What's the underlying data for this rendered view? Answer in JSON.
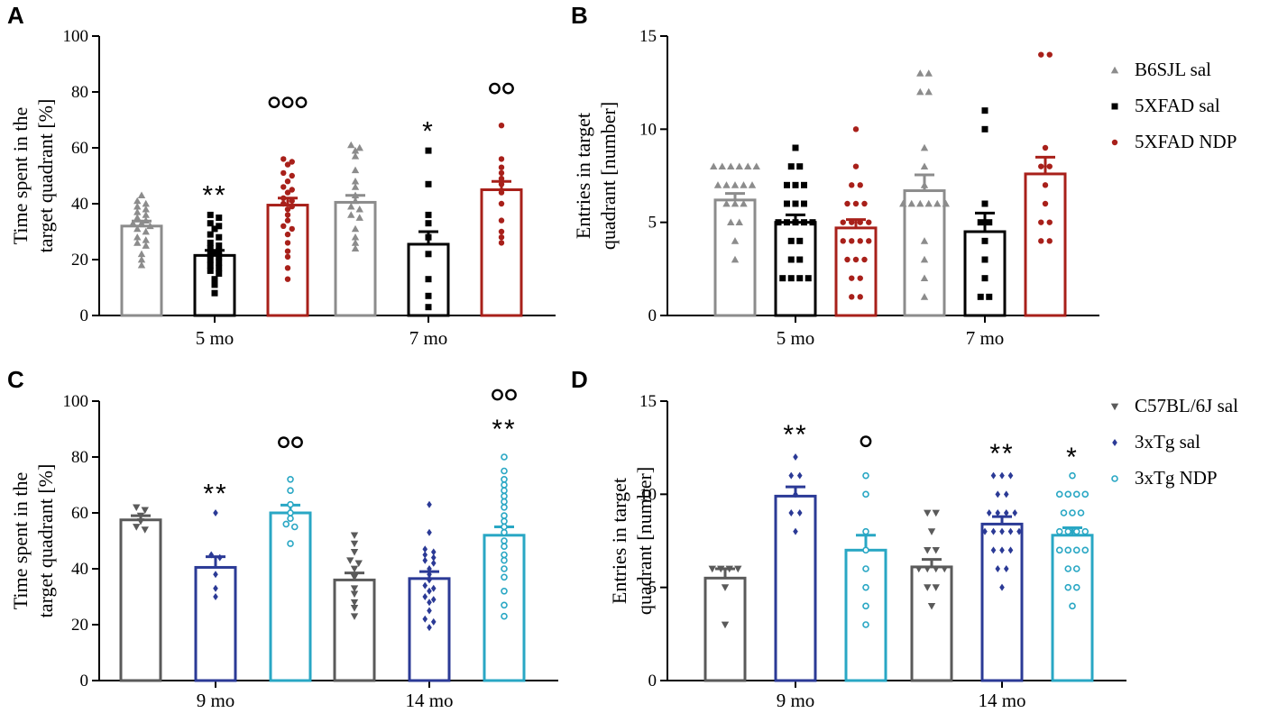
{
  "figure": {
    "width": 1417,
    "height": 791
  },
  "legends": [
    {
      "entries": [
        {
          "name": "B6SJL sal",
          "color": "#8c8c8c",
          "marker": "triangle-up"
        },
        {
          "name": "5XFAD sal",
          "color": "#000000",
          "marker": "square"
        },
        {
          "name": "5XFAD NDP",
          "color": "#a8201a",
          "marker": "circle"
        }
      ]
    },
    {
      "entries": [
        {
          "name": "C57BL/6J sal",
          "color": "#5a5a5a",
          "marker": "triangle-down"
        },
        {
          "name": "3xTg sal",
          "color": "#2b3a96",
          "marker": "diamond"
        },
        {
          "name": "3xTg NDP",
          "color": "#29a7c4",
          "marker": "circle-open"
        }
      ]
    }
  ],
  "chart_data": [
    {
      "panel": "A",
      "type": "bar",
      "ylabel": [
        "Time spent in the",
        "target quadrant [%]"
      ],
      "ylim": [
        0,
        100
      ],
      "yticks": [
        0,
        20,
        40,
        60,
        80,
        100
      ],
      "categories": [
        "5 mo",
        "7 mo"
      ],
      "series": [
        {
          "name": "B6SJL sal",
          "color": "#8c8c8c",
          "marker": "triangle-up",
          "means": [
            32,
            40.5
          ],
          "sem": [
            1.8,
            2.5
          ],
          "points": [
            [
              43,
              41,
              40,
              39,
              38,
              37,
              36,
              35,
              34,
              33,
              33,
              32,
              31,
              30,
              28,
              27,
              26,
              25,
              22,
              20,
              18
            ],
            [
              61,
              60,
              59,
              57,
              52,
              48,
              46,
              43,
              41,
              39,
              38,
              36,
              35,
              31,
              28,
              26,
              24
            ]
          ]
        },
        {
          "name": "5XFAD sal",
          "color": "#000000",
          "marker": "square",
          "means": [
            21.5,
            25.5
          ],
          "sem": [
            1.8,
            4.5
          ],
          "points": [
            [
              36,
              35,
              33,
              32,
              31,
              29,
              28,
              26,
              25,
              24,
              23,
              22,
              21,
              20,
              19,
              18,
              17,
              16,
              15,
              13,
              11,
              8
            ],
            [
              59,
              47,
              36,
              33,
              28,
              22,
              13,
              7,
              3
            ]
          ]
        },
        {
          "name": "5XFAD NDP",
          "color": "#a8201a",
          "marker": "circle",
          "means": [
            39.5,
            45
          ],
          "sem": [
            2.5,
            3
          ],
          "points": [
            [
              56,
              55,
              54,
              51,
              50,
              48,
              46,
              45,
              44,
              42,
              41,
              40,
              39,
              38,
              36,
              34,
              32,
              31,
              29,
              26,
              23,
              21,
              17,
              13
            ],
            [
              68,
              56,
              53,
              51,
              49,
              47,
              44,
              40,
              34,
              30,
              28,
              26
            ]
          ]
        }
      ],
      "annotations": [
        {
          "category": 0,
          "series": 1,
          "text": "**",
          "value": 43
        },
        {
          "category": 0,
          "series": 2,
          "text": "ooo",
          "value": 74
        },
        {
          "category": 1,
          "series": 1,
          "text": "*",
          "value": 66
        },
        {
          "category": 1,
          "series": 2,
          "text": "oo",
          "value": 79
        }
      ]
    },
    {
      "panel": "B",
      "type": "bar",
      "ylabel": [
        "Entries in target",
        "quadrant [number]"
      ],
      "ylim": [
        0,
        15
      ],
      "yticks": [
        0,
        5,
        10,
        15
      ],
      "categories": [
        "5 mo",
        "7 mo"
      ],
      "series": [
        {
          "name": "B6SJL sal",
          "color": "#8c8c8c",
          "marker": "triangle-up",
          "means": [
            6.2,
            6.7
          ],
          "sem": [
            0.35,
            0.85
          ],
          "points": [
            [
              8,
              8,
              8,
              8,
              8,
              8,
              7,
              7,
              7,
              7,
              7,
              6,
              6,
              6,
              5,
              5,
              4,
              3
            ],
            [
              13,
              13,
              12,
              12,
              9,
              8,
              7,
              6,
              6,
              6,
              6,
              6,
              6,
              4,
              3,
              2,
              1
            ]
          ]
        },
        {
          "name": "5XFAD sal",
          "color": "#000000",
          "marker": "square",
          "means": [
            5,
            4.5
          ],
          "sem": [
            0.4,
            1
          ],
          "points": [
            [
              9,
              8,
              8,
              7,
              7,
              7,
              6,
              6,
              6,
              5,
              5,
              5,
              5,
              5,
              4,
              4,
              3,
              3,
              2,
              2,
              2,
              2
            ],
            [
              11,
              10,
              6,
              5,
              5,
              4,
              3,
              2,
              1,
              1
            ]
          ]
        },
        {
          "name": "5XFAD NDP",
          "color": "#a8201a",
          "marker": "circle",
          "means": [
            4.7,
            7.6
          ],
          "sem": [
            0.45,
            0.9
          ],
          "points": [
            [
              10,
              8,
              7,
              7,
              6,
              6,
              6,
              5,
              5,
              5,
              5,
              4,
              4,
              4,
              4,
              3,
              3,
              3,
              2,
              2,
              1,
              1
            ],
            [
              14,
              14,
              9,
              8,
              8,
              7,
              6,
              5,
              5,
              4,
              4
            ]
          ]
        }
      ],
      "annotations": []
    },
    {
      "panel": "C",
      "type": "bar",
      "ylabel": [
        "Time spent in the",
        "target quadrant [%]"
      ],
      "ylim": [
        0,
        100
      ],
      "yticks": [
        0,
        20,
        40,
        60,
        80,
        100
      ],
      "categories": [
        "9 mo",
        "14 mo"
      ],
      "series": [
        {
          "name": "C57BL/6J sal",
          "color": "#5a5a5a",
          "marker": "triangle-down",
          "means": [
            57.5,
            36
          ],
          "sem": [
            1.5,
            2.5
          ],
          "points": [
            [
              62,
              61,
              59,
              57,
              55,
              54
            ],
            [
              52,
              49,
              46,
              43,
              42,
              40,
              37,
              33,
              31,
              28,
              26,
              23
            ]
          ]
        },
        {
          "name": "3xTg sal",
          "color": "#2b3a96",
          "marker": "diamond",
          "means": [
            40.5,
            36.5
          ],
          "sem": [
            3.8,
            2.5
          ],
          "points": [
            [
              60,
              45,
              44,
              38,
              33,
              30
            ],
            [
              63,
              53,
              47,
              46,
              45,
              44,
              43,
              42,
              40,
              38,
              36,
              34,
              33,
              32,
              30,
              29,
              28,
              25,
              22,
              21,
              19
            ]
          ]
        },
        {
          "name": "3xTg NDP",
          "color": "#29a7c4",
          "marker": "circle-open",
          "means": [
            60,
            52
          ],
          "sem": [
            2.8,
            3
          ],
          "points": [
            [
              72,
              68,
              63,
              60,
              58,
              56,
              55,
              49
            ],
            [
              80,
              75,
              72,
              70,
              68,
              66,
              64,
              62,
              59,
              57,
              55,
              53,
              50,
              48,
              45,
              43,
              40,
              37,
              32,
              27,
              23
            ]
          ]
        }
      ],
      "annotations": [
        {
          "category": 0,
          "series": 1,
          "text": "**",
          "value": 67
        },
        {
          "category": 0,
          "series": 2,
          "text": "oo",
          "value": 83
        },
        {
          "category": 1,
          "series": 2,
          "text": "**",
          "value": 90
        },
        {
          "category": 1,
          "series": 2,
          "text": "oo",
          "value": 100
        }
      ]
    },
    {
      "panel": "D",
      "type": "bar",
      "ylabel": [
        "Entries in target",
        "quadrant [number]"
      ],
      "ylim": [
        0,
        15
      ],
      "yticks": [
        0,
        5,
        10,
        15
      ],
      "categories": [
        "9 mo",
        "14 mo"
      ],
      "series": [
        {
          "name": "C57BL/6J sal",
          "color": "#5a5a5a",
          "marker": "triangle-down",
          "means": [
            5.5,
            6.1
          ],
          "sem": [
            0.5,
            0.4
          ],
          "points": [
            [
              6,
              6,
              6,
              6,
              5,
              3
            ],
            [
              9,
              9,
              8,
              7,
              7,
              6,
              6,
              6,
              6,
              5,
              5,
              4
            ]
          ]
        },
        {
          "name": "3xTg sal",
          "color": "#2b3a96",
          "marker": "diamond",
          "means": [
            9.9,
            8.4
          ],
          "sem": [
            0.5,
            0.4
          ],
          "points": [
            [
              12,
              11,
              11,
              10,
              9,
              9,
              8
            ],
            [
              11,
              11,
              11,
              10,
              10,
              9,
              9,
              9,
              9,
              8,
              8,
              8,
              8,
              8,
              7,
              7,
              7,
              6,
              6,
              5
            ]
          ]
        },
        {
          "name": "3xTg NDP",
          "color": "#29a7c4",
          "marker": "circle-open",
          "means": [
            7.0,
            7.8
          ],
          "sem": [
            0.8,
            0.4
          ],
          "points": [
            [
              11,
              10,
              8,
              7,
              6,
              5,
              4,
              3
            ],
            [
              11,
              10,
              10,
              10,
              10,
              9,
              9,
              9,
              8,
              8,
              8,
              8,
              7,
              7,
              7,
              7,
              6,
              6,
              5,
              5,
              4
            ]
          ]
        }
      ],
      "annotations": [
        {
          "category": 0,
          "series": 1,
          "text": "**",
          "value": 13.2
        },
        {
          "category": 0,
          "series": 2,
          "text": "o",
          "value": 12.5
        },
        {
          "category": 1,
          "series": 1,
          "text": "**",
          "value": 12.2
        },
        {
          "category": 1,
          "series": 2,
          "text": "*",
          "value": 12
        }
      ]
    }
  ]
}
